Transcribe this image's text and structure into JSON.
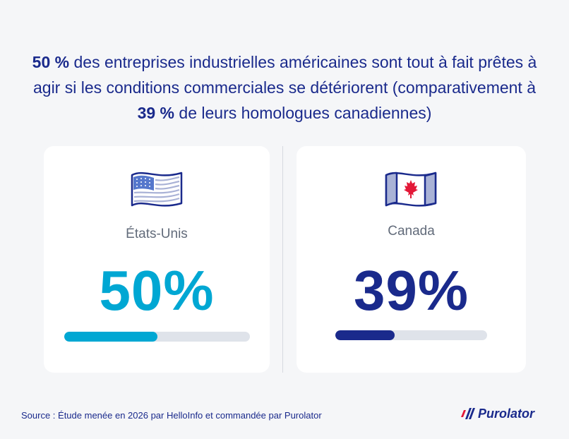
{
  "headline": {
    "part1": "50 %",
    "part2": " des entreprises industrielles américaines sont tout à fait prêtes à agir si les conditions commerciales se détériorent (comparativement à ",
    "part3": "39 %",
    "part4": " de leurs homologues canadiennes)"
  },
  "chart_data": {
    "type": "bar",
    "categories": [
      "États-Unis",
      "Canada"
    ],
    "values": [
      50,
      39
    ],
    "value_labels": [
      "50%",
      "39%"
    ],
    "ylim": [
      0,
      100
    ],
    "colors": [
      "#00a7d3",
      "#1a2a8c"
    ]
  },
  "flags": [
    "us-flag-icon",
    "canada-flag-icon"
  ],
  "source": "Source : Étude menée en 2026 par HelloInfo et commandée par Purolator",
  "logo": {
    "text": "Purolator"
  },
  "colors": {
    "brand_navy": "#1a2a8c",
    "accent_cyan": "#00a7d3",
    "brand_red": "#e31837",
    "track": "#dfe3ea",
    "background": "#f5f6f8"
  }
}
